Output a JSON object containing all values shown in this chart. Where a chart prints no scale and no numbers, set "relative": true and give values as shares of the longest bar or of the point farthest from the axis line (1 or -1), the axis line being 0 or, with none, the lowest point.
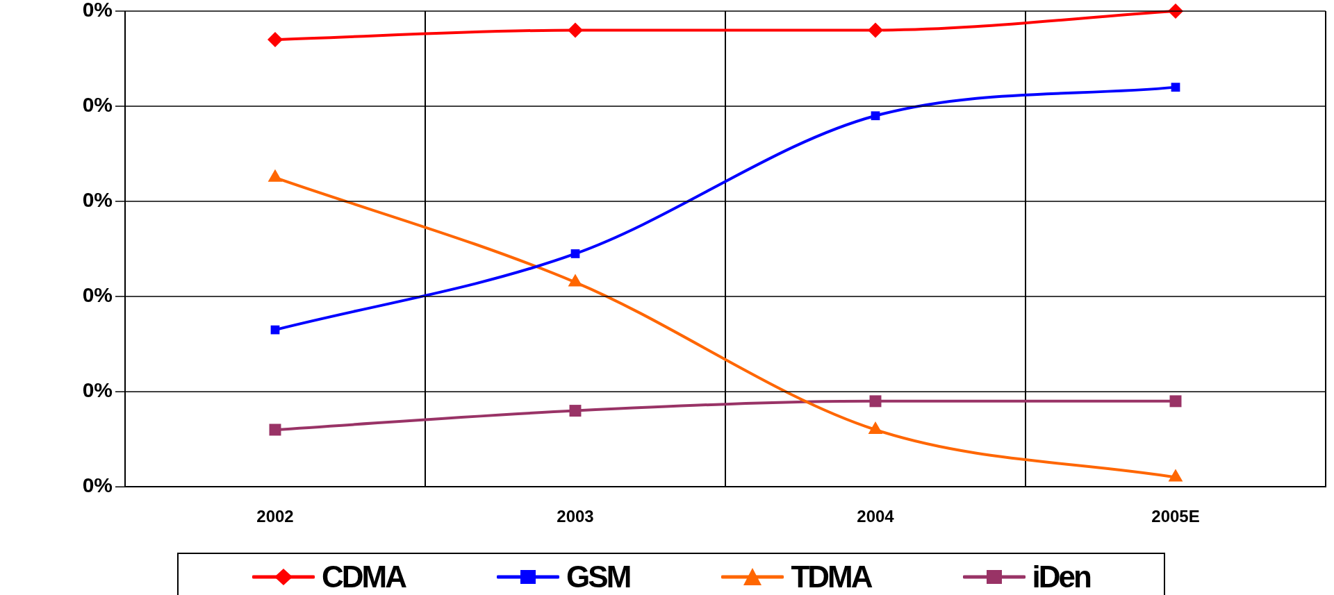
{
  "chart_data": {
    "type": "line",
    "categories": [
      "2002",
      "2003",
      "2004",
      "2005E"
    ],
    "relative": true,
    "series": [
      {
        "name": "CDMA",
        "color": "#ff0000",
        "marker": "diamond",
        "values": [
          0.94,
          0.96,
          0.96,
          1
        ]
      },
      {
        "name": "GSM",
        "color": "#0000ff",
        "marker": "square",
        "values": [
          0.33,
          0.49,
          0.78,
          0.84
        ]
      },
      {
        "name": "TDMA",
        "color": "#ff6600",
        "marker": "triangle",
        "values": [
          0.65,
          0.43,
          0.12,
          0.02
        ]
      },
      {
        "name": "iDen",
        "color": "#993366",
        "marker": "square",
        "values": [
          0.12,
          0.16,
          0.18,
          0.18
        ]
      }
    ],
    "annotations": [
      "0%",
      "0%",
      "0%",
      "0%",
      "0%",
      "0%"
    ],
    "grid": true,
    "legend": "bottom",
    "line_style": "solid"
  }
}
